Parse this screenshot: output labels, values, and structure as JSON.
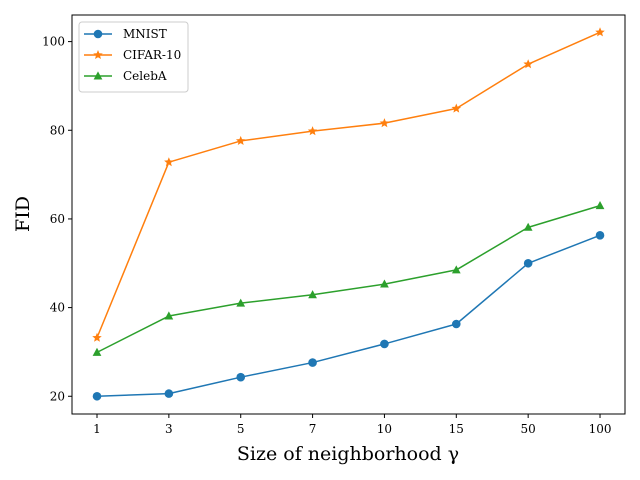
{
  "chart_data": {
    "type": "line",
    "categories": [
      "1",
      "3",
      "5",
      "7",
      "10",
      "15",
      "50",
      "100"
    ],
    "xlabel": "Size of neighborhood γ",
    "ylabel": "FID",
    "ylim": [
      16,
      106
    ],
    "yticks": [
      20,
      40,
      60,
      80,
      100
    ],
    "grid": false,
    "legend_position": "top-left",
    "series": [
      {
        "name": "MNIST",
        "color": "#1f77b4",
        "marker": "circle",
        "values": [
          20.0,
          20.6,
          24.3,
          27.6,
          31.8,
          36.3,
          50.0,
          56.3
        ]
      },
      {
        "name": "CIFAR-10",
        "color": "#ff7f0e",
        "marker": "star",
        "values": [
          33.2,
          72.8,
          77.6,
          79.8,
          81.6,
          84.9,
          94.9,
          102.1
        ]
      },
      {
        "name": "CelebA",
        "color": "#2ca02c",
        "marker": "triangle",
        "values": [
          29.9,
          38.1,
          41.0,
          42.9,
          45.3,
          48.5,
          58.1,
          63.0
        ]
      }
    ]
  }
}
